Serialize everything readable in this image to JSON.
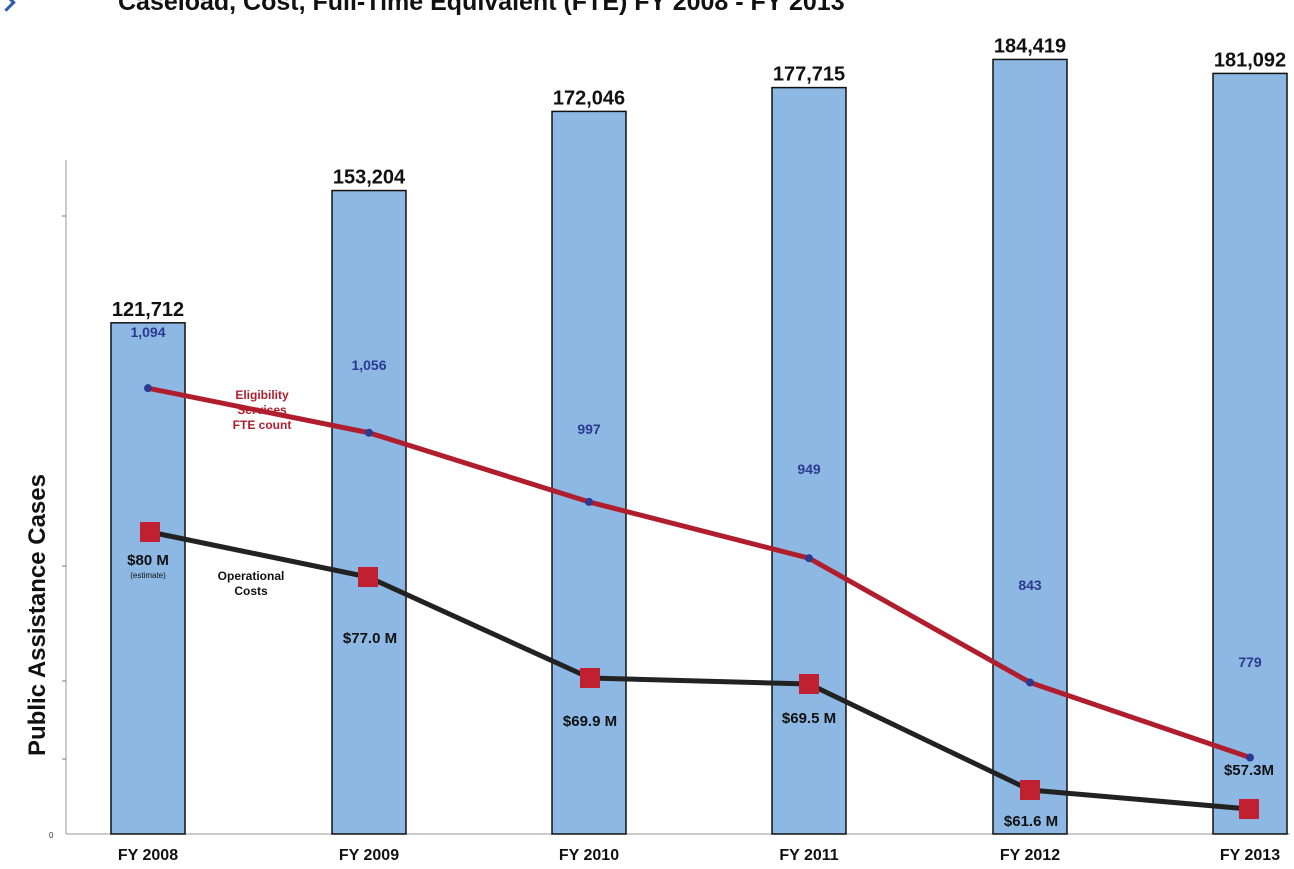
{
  "chart_data": {
    "type": "bar",
    "title": "Caseload, Cost, Full-Time Equivalent (FTE)  FY 2008 - FY 2013",
    "ylabel": "Public Assistance Cases",
    "y_tick_zero": "0",
    "categories": [
      "FY 2008",
      "FY 2009",
      "FY 2010",
      "FY 2011",
      "FY 2012",
      "FY 2013"
    ],
    "ylim": [
      0,
      195000
    ],
    "bar_series": {
      "color": "#8db8e3",
      "values": [
        121712,
        153204,
        172046,
        177715,
        184419,
        181092
      ],
      "labels": [
        "121,712",
        "153,204",
        "172,046",
        "177,715",
        "184,419",
        "181,092"
      ]
    },
    "fte_series": {
      "name": "Eligibility Services FTE count",
      "name_lines": [
        "Eligibility",
        "Services",
        "FTE count"
      ],
      "color": "#b01e2e",
      "marker_color": "#2b3a8f",
      "values": [
        1094,
        1056,
        997,
        949,
        843,
        779
      ],
      "labels": [
        "1,094",
        "1,056",
        "997",
        "949",
        "843",
        "779"
      ]
    },
    "cost_series": {
      "name": "Operational Costs",
      "name_lines": [
        "Operational",
        "Costs"
      ],
      "color": "#222222",
      "marker_color": "#c0202f",
      "values": [
        80,
        77.0,
        69.9,
        69.5,
        61.6,
        57.3
      ],
      "labels": [
        "$80 M",
        "$77.0 M",
        "$69.9 M",
        "$69.5 M",
        "$61.6 M",
        "$57.3M"
      ],
      "first_note": "(estimate)"
    },
    "grid": false,
    "legend": "inline"
  }
}
